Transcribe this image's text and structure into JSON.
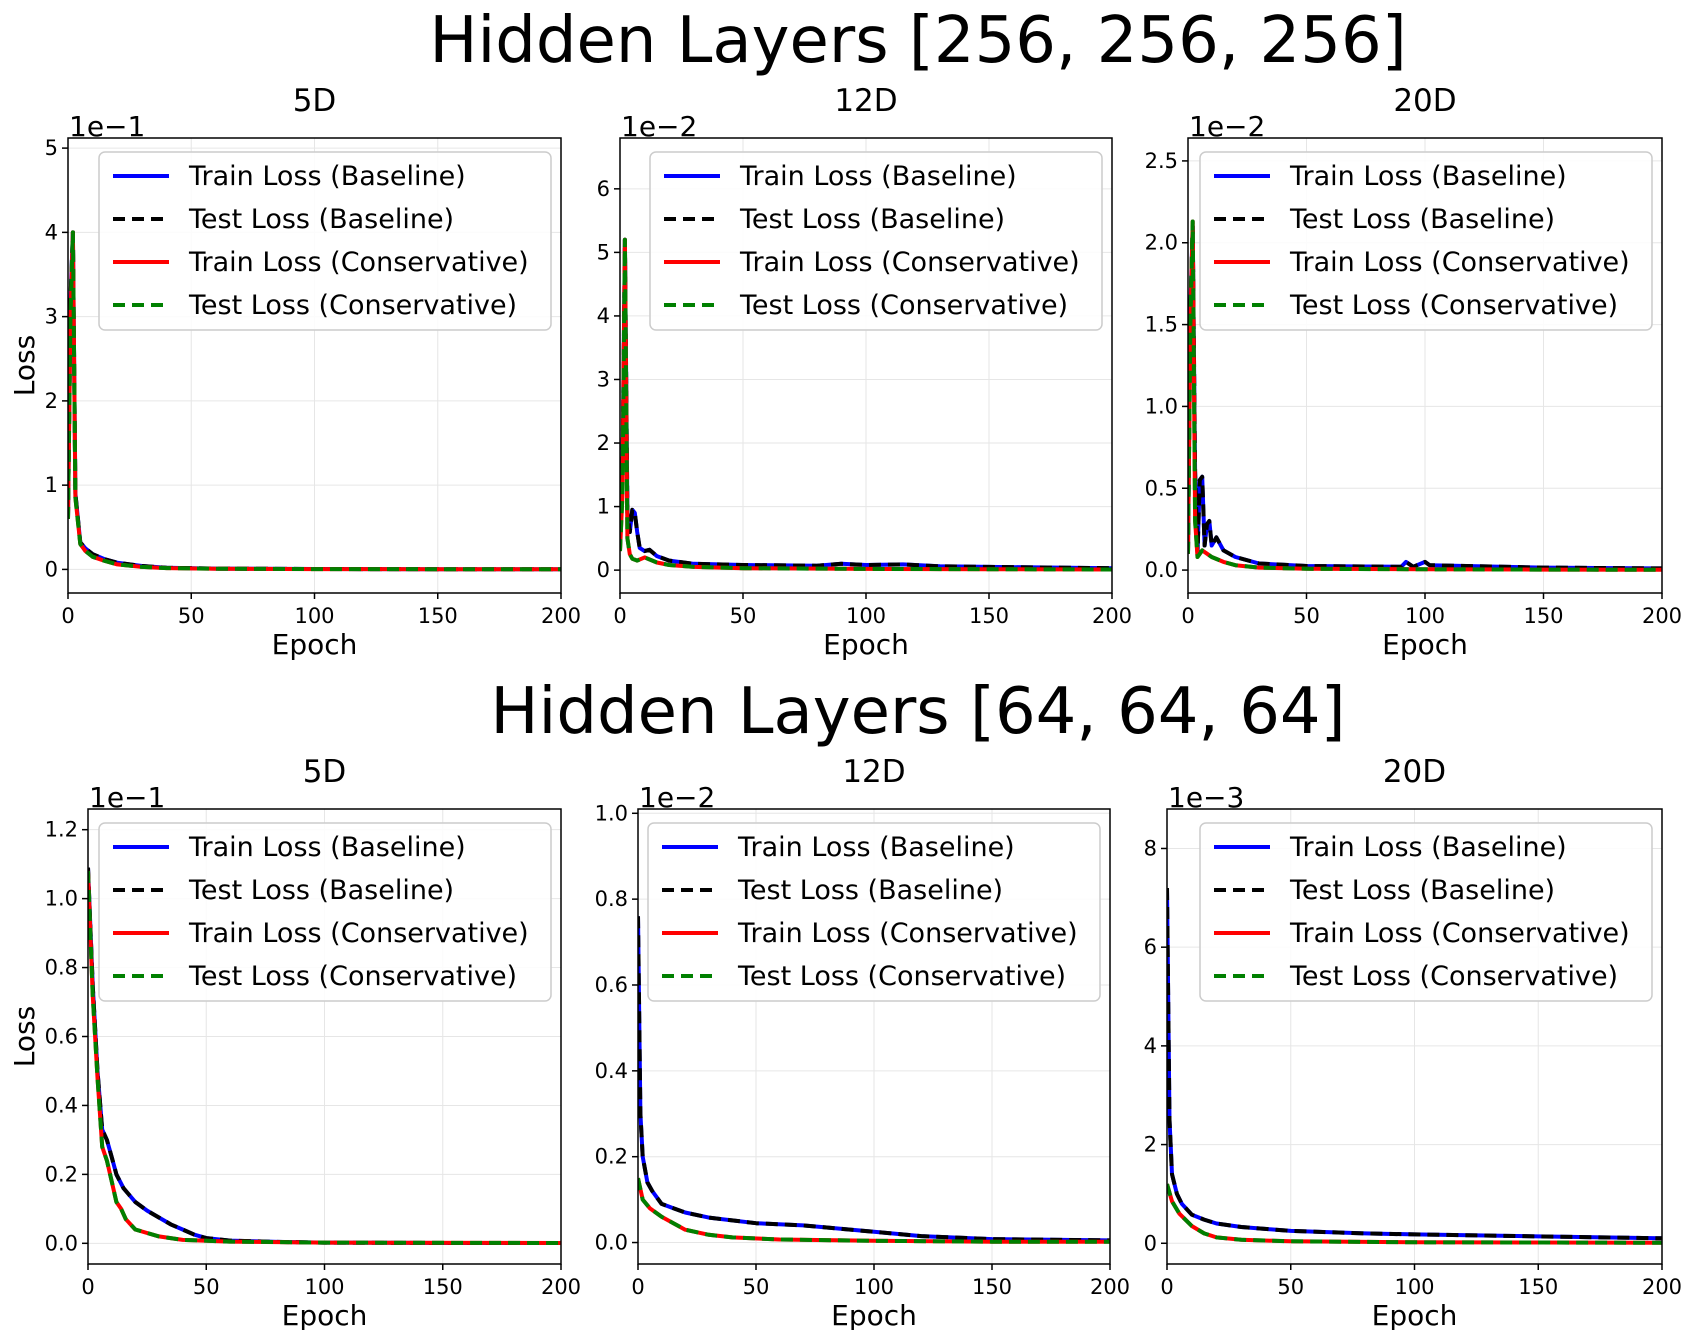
{
  "rows": [
    {
      "title": "Hidden Layers [256, 256, 256]"
    },
    {
      "title": "Hidden Layers [64, 64, 64]"
    }
  ],
  "legend_entries": [
    {
      "label": "Train Loss (Baseline)",
      "color": "#0000ff",
      "style": "solid"
    },
    {
      "label": "Test Loss (Baseline)",
      "color": "#000000",
      "style": "dashed"
    },
    {
      "label": "Train Loss (Conservative)",
      "color": "#ff0000",
      "style": "solid"
    },
    {
      "label": "Test Loss (Conservative)",
      "color": "#008000",
      "style": "dashed"
    }
  ],
  "chart_data": [
    {
      "type": "line",
      "title": "5D",
      "xlabel": "Epoch",
      "ylabel": "Loss",
      "multiplier": "1e−1",
      "xlim": [
        0,
        200
      ],
      "ylim": [
        -0.28,
        5.12
      ],
      "xticks": [
        0,
        50,
        100,
        150,
        200
      ],
      "xtick_labels": [
        "0",
        "50",
        "100",
        "150",
        "200"
      ],
      "yticks": [
        0,
        1,
        2,
        3,
        4,
        5
      ],
      "ytick_labels": [
        "0",
        "1",
        "2",
        "3",
        "4",
        "5"
      ],
      "grid": true,
      "legend": "upper-right",
      "baseline": [
        [
          0,
          0.6
        ],
        [
          1,
          3.2
        ],
        [
          2,
          4.0
        ],
        [
          3,
          0.9
        ],
        [
          5,
          0.32
        ],
        [
          7,
          0.25
        ],
        [
          10,
          0.18
        ],
        [
          15,
          0.12
        ],
        [
          20,
          0.08
        ],
        [
          30,
          0.04
        ],
        [
          40,
          0.02
        ],
        [
          60,
          0.01
        ],
        [
          100,
          0.005
        ],
        [
          150,
          0.003
        ],
        [
          200,
          0.002
        ]
      ],
      "conservative": [
        [
          0,
          0.6
        ],
        [
          1,
          3.0
        ],
        [
          2,
          4.0
        ],
        [
          3,
          0.85
        ],
        [
          5,
          0.3
        ],
        [
          7,
          0.22
        ],
        [
          10,
          0.15
        ],
        [
          15,
          0.1
        ],
        [
          20,
          0.06
        ],
        [
          30,
          0.03
        ],
        [
          40,
          0.015
        ],
        [
          60,
          0.008
        ],
        [
          100,
          0.004
        ],
        [
          150,
          0.002
        ],
        [
          200,
          0.001
        ]
      ]
    },
    {
      "type": "line",
      "title": "12D",
      "xlabel": "Epoch",
      "ylabel": "",
      "multiplier": "1e−2",
      "xlim": [
        0,
        200
      ],
      "ylim": [
        -0.36,
        6.8
      ],
      "xticks": [
        0,
        50,
        100,
        150,
        200
      ],
      "xtick_labels": [
        "0",
        "50",
        "100",
        "150",
        "200"
      ],
      "yticks": [
        0,
        1,
        2,
        3,
        4,
        5,
        6
      ],
      "ytick_labels": [
        "0",
        "1",
        "2",
        "3",
        "4",
        "5",
        "6"
      ],
      "grid": true,
      "legend": "upper-right",
      "baseline": [
        [
          0,
          0.4
        ],
        [
          1,
          1.5
        ],
        [
          2,
          5.2
        ],
        [
          3,
          0.9
        ],
        [
          4,
          0.6
        ],
        [
          5,
          0.95
        ],
        [
          6,
          0.9
        ],
        [
          7,
          0.6
        ],
        [
          8,
          0.35
        ],
        [
          10,
          0.3
        ],
        [
          12,
          0.32
        ],
        [
          15,
          0.22
        ],
        [
          20,
          0.15
        ],
        [
          30,
          0.1
        ],
        [
          50,
          0.08
        ],
        [
          80,
          0.07
        ],
        [
          90,
          0.1
        ],
        [
          100,
          0.08
        ],
        [
          115,
          0.09
        ],
        [
          130,
          0.06
        ],
        [
          150,
          0.05
        ],
        [
          200,
          0.03
        ]
      ],
      "conservative": [
        [
          0,
          0.3
        ],
        [
          1,
          1.2
        ],
        [
          2,
          5.2
        ],
        [
          3,
          0.5
        ],
        [
          4,
          0.25
        ],
        [
          5,
          0.18
        ],
        [
          7,
          0.15
        ],
        [
          10,
          0.2
        ],
        [
          15,
          0.12
        ],
        [
          20,
          0.08
        ],
        [
          30,
          0.05
        ],
        [
          50,
          0.03
        ],
        [
          100,
          0.02
        ],
        [
          150,
          0.015
        ],
        [
          200,
          0.01
        ]
      ]
    },
    {
      "type": "line",
      "title": "20D",
      "xlabel": "Epoch",
      "ylabel": "",
      "multiplier": "1e−2",
      "xlim": [
        0,
        200
      ],
      "ylim": [
        -0.14,
        2.64
      ],
      "xticks": [
        0,
        50,
        100,
        150,
        200
      ],
      "xtick_labels": [
        "0",
        "50",
        "100",
        "150",
        "200"
      ],
      "yticks": [
        0,
        0.5,
        1.0,
        1.5,
        2.0,
        2.5
      ],
      "ytick_labels": [
        "0.0",
        "0.5",
        "1.0",
        "1.5",
        "2.0",
        "2.5"
      ],
      "grid": true,
      "legend": "upper-right",
      "baseline": [
        [
          0,
          0.1
        ],
        [
          1,
          1.6
        ],
        [
          2,
          2.1
        ],
        [
          3,
          0.6
        ],
        [
          4,
          0.1
        ],
        [
          5,
          0.55
        ],
        [
          6,
          0.57
        ],
        [
          7,
          0.15
        ],
        [
          8,
          0.28
        ],
        [
          9,
          0.3
        ],
        [
          10,
          0.15
        ],
        [
          12,
          0.2
        ],
        [
          15,
          0.12
        ],
        [
          20,
          0.08
        ],
        [
          30,
          0.04
        ],
        [
          50,
          0.025
        ],
        [
          90,
          0.02
        ],
        [
          92,
          0.05
        ],
        [
          95,
          0.02
        ],
        [
          100,
          0.05
        ],
        [
          102,
          0.03
        ],
        [
          150,
          0.015
        ],
        [
          200,
          0.01
        ]
      ],
      "conservative": [
        [
          0,
          0.1
        ],
        [
          1,
          1.5
        ],
        [
          2,
          2.13
        ],
        [
          3,
          0.3
        ],
        [
          4,
          0.08
        ],
        [
          6,
          0.12
        ],
        [
          8,
          0.1
        ],
        [
          10,
          0.08
        ],
        [
          15,
          0.05
        ],
        [
          20,
          0.03
        ],
        [
          30,
          0.015
        ],
        [
          50,
          0.008
        ],
        [
          100,
          0.005
        ],
        [
          150,
          0.003
        ],
        [
          200,
          0.002
        ]
      ]
    },
    {
      "type": "line",
      "title": "5D",
      "xlabel": "Epoch",
      "ylabel": "Loss",
      "multiplier": "1e−1",
      "xlim": [
        0,
        200
      ],
      "ylim": [
        -0.06,
        1.26
      ],
      "xticks": [
        0,
        50,
        100,
        150,
        200
      ],
      "xtick_labels": [
        "0",
        "50",
        "100",
        "150",
        "200"
      ],
      "yticks": [
        0,
        0.2,
        0.4,
        0.6,
        0.8,
        1.0,
        1.2
      ],
      "ytick_labels": [
        "0.0",
        "0.2",
        "0.4",
        "0.6",
        "0.8",
        "1.0",
        "1.2"
      ],
      "grid": true,
      "legend": "upper-right",
      "baseline": [
        [
          0,
          1.09
        ],
        [
          2,
          0.75
        ],
        [
          4,
          0.5
        ],
        [
          6,
          0.33
        ],
        [
          8,
          0.3
        ],
        [
          10,
          0.25
        ],
        [
          12,
          0.2
        ],
        [
          15,
          0.16
        ],
        [
          20,
          0.12
        ],
        [
          25,
          0.095
        ],
        [
          30,
          0.075
        ],
        [
          35,
          0.055
        ],
        [
          40,
          0.04
        ],
        [
          45,
          0.025
        ],
        [
          50,
          0.015
        ],
        [
          60,
          0.008
        ],
        [
          80,
          0.004
        ],
        [
          100,
          0.002
        ],
        [
          150,
          0.001
        ],
        [
          200,
          0.001
        ]
      ],
      "conservative": [
        [
          0,
          1.08
        ],
        [
          2,
          0.72
        ],
        [
          4,
          0.48
        ],
        [
          6,
          0.28
        ],
        [
          8,
          0.24
        ],
        [
          10,
          0.18
        ],
        [
          12,
          0.12
        ],
        [
          14,
          0.1
        ],
        [
          16,
          0.07
        ],
        [
          20,
          0.04
        ],
        [
          25,
          0.03
        ],
        [
          30,
          0.02
        ],
        [
          40,
          0.01
        ],
        [
          60,
          0.005
        ],
        [
          100,
          0.002
        ],
        [
          200,
          0.001
        ]
      ]
    },
    {
      "type": "line",
      "title": "12D",
      "xlabel": "Epoch",
      "ylabel": "",
      "multiplier": "1e−2",
      "xlim": [
        0,
        200
      ],
      "ylim": [
        -0.05,
        1.01
      ],
      "xticks": [
        0,
        50,
        100,
        150,
        200
      ],
      "xtick_labels": [
        "0",
        "50",
        "100",
        "150",
        "200"
      ],
      "yticks": [
        0,
        0.2,
        0.4,
        0.6,
        0.8,
        1.0
      ],
      "ytick_labels": [
        "0.0",
        "0.2",
        "0.4",
        "0.6",
        "0.8",
        "1.0"
      ],
      "grid": true,
      "legend": "upper-right",
      "baseline": [
        [
          0,
          0.76
        ],
        [
          1,
          0.3
        ],
        [
          2,
          0.2
        ],
        [
          4,
          0.14
        ],
        [
          6,
          0.12
        ],
        [
          10,
          0.09
        ],
        [
          15,
          0.08
        ],
        [
          20,
          0.07
        ],
        [
          30,
          0.058
        ],
        [
          50,
          0.045
        ],
        [
          70,
          0.04
        ],
        [
          80,
          0.035
        ],
        [
          100,
          0.025
        ],
        [
          120,
          0.015
        ],
        [
          150,
          0.008
        ],
        [
          200,
          0.005
        ]
      ],
      "conservative": [
        [
          0,
          0.15
        ],
        [
          2,
          0.1
        ],
        [
          5,
          0.08
        ],
        [
          10,
          0.06
        ],
        [
          15,
          0.045
        ],
        [
          20,
          0.03
        ],
        [
          30,
          0.018
        ],
        [
          40,
          0.012
        ],
        [
          60,
          0.007
        ],
        [
          100,
          0.004
        ],
        [
          150,
          0.002
        ],
        [
          200,
          0.002
        ]
      ]
    },
    {
      "type": "line",
      "title": "20D",
      "xlabel": "Epoch",
      "ylabel": "",
      "multiplier": "1e−3",
      "xlim": [
        0,
        200
      ],
      "ylim": [
        -0.42,
        8.8
      ],
      "xticks": [
        0,
        50,
        100,
        150,
        200
      ],
      "xtick_labels": [
        "0",
        "50",
        "100",
        "150",
        "200"
      ],
      "yticks": [
        0,
        2,
        4,
        6,
        8
      ],
      "ytick_labels": [
        "0",
        "2",
        "4",
        "6",
        "8"
      ],
      "grid": true,
      "legend": "upper-right",
      "baseline": [
        [
          0,
          7.2
        ],
        [
          1,
          2.5
        ],
        [
          2,
          1.4
        ],
        [
          4,
          1.0
        ],
        [
          6,
          0.8
        ],
        [
          10,
          0.58
        ],
        [
          15,
          0.48
        ],
        [
          20,
          0.4
        ],
        [
          30,
          0.33
        ],
        [
          50,
          0.25
        ],
        [
          80,
          0.2
        ],
        [
          100,
          0.18
        ],
        [
          150,
          0.14
        ],
        [
          200,
          0.1
        ]
      ],
      "conservative": [
        [
          0,
          1.2
        ],
        [
          2,
          0.85
        ],
        [
          5,
          0.6
        ],
        [
          10,
          0.35
        ],
        [
          15,
          0.2
        ],
        [
          20,
          0.12
        ],
        [
          30,
          0.07
        ],
        [
          50,
          0.04
        ],
        [
          100,
          0.02
        ],
        [
          150,
          0.015
        ],
        [
          200,
          0.01
        ]
      ]
    }
  ]
}
